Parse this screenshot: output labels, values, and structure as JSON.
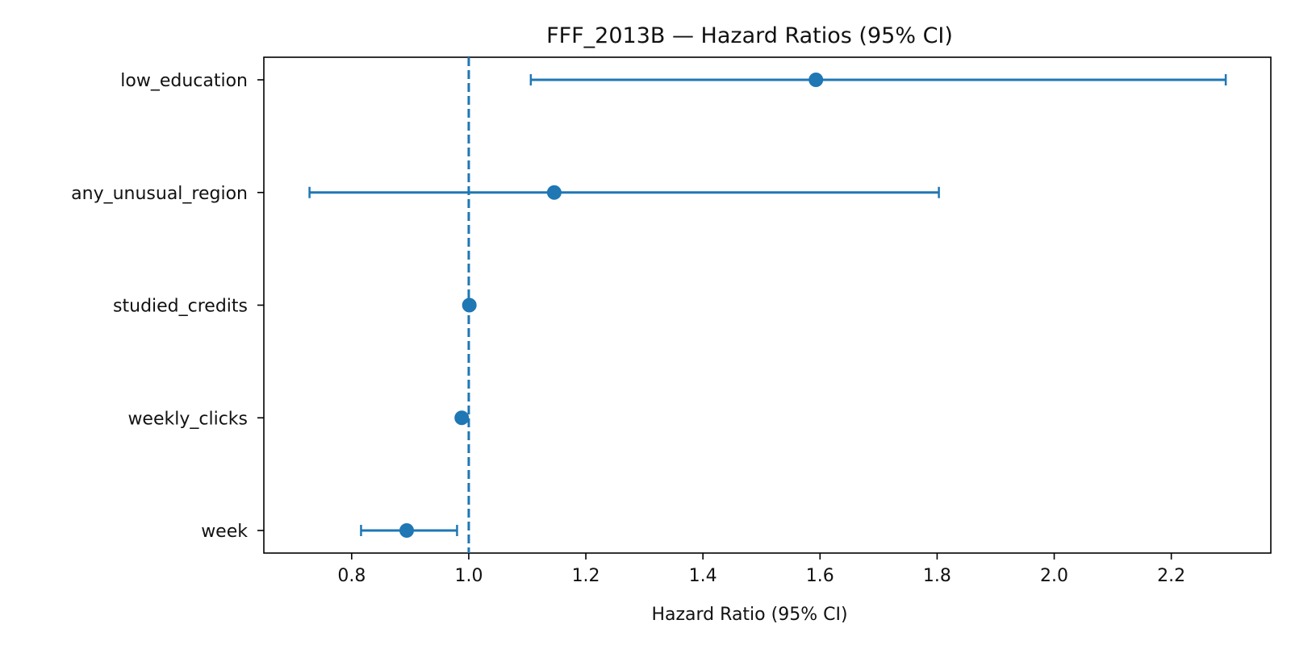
{
  "chart_data": {
    "type": "forest",
    "title": "FFF_2013B — Hazard Ratios (95% CI)",
    "xlabel": "Hazard Ratio (95% CI)",
    "ylabel": "",
    "xlim": [
      0.65,
      2.37
    ],
    "xticks": [
      "0.8",
      "1.0",
      "1.2",
      "1.4",
      "1.6",
      "1.8",
      "2.0",
      "2.2"
    ],
    "reference_line": 1.0,
    "color": "#1f77b4",
    "grid": false,
    "legend": "none",
    "rows": [
      {
        "label": "low_education",
        "hr": 1.593,
        "lower": 1.106,
        "upper": 2.293
      },
      {
        "label": "any_unusual_region",
        "hr": 1.146,
        "lower": 0.728,
        "upper": 1.803
      },
      {
        "label": "studied_credits",
        "hr": 1.001,
        "lower": 0.999,
        "upper": 1.003
      },
      {
        "label": "weekly_clicks",
        "hr": 0.988,
        "lower": 0.985,
        "upper": 0.991
      },
      {
        "label": "week",
        "hr": 0.894,
        "lower": 0.816,
        "upper": 0.98
      }
    ]
  }
}
